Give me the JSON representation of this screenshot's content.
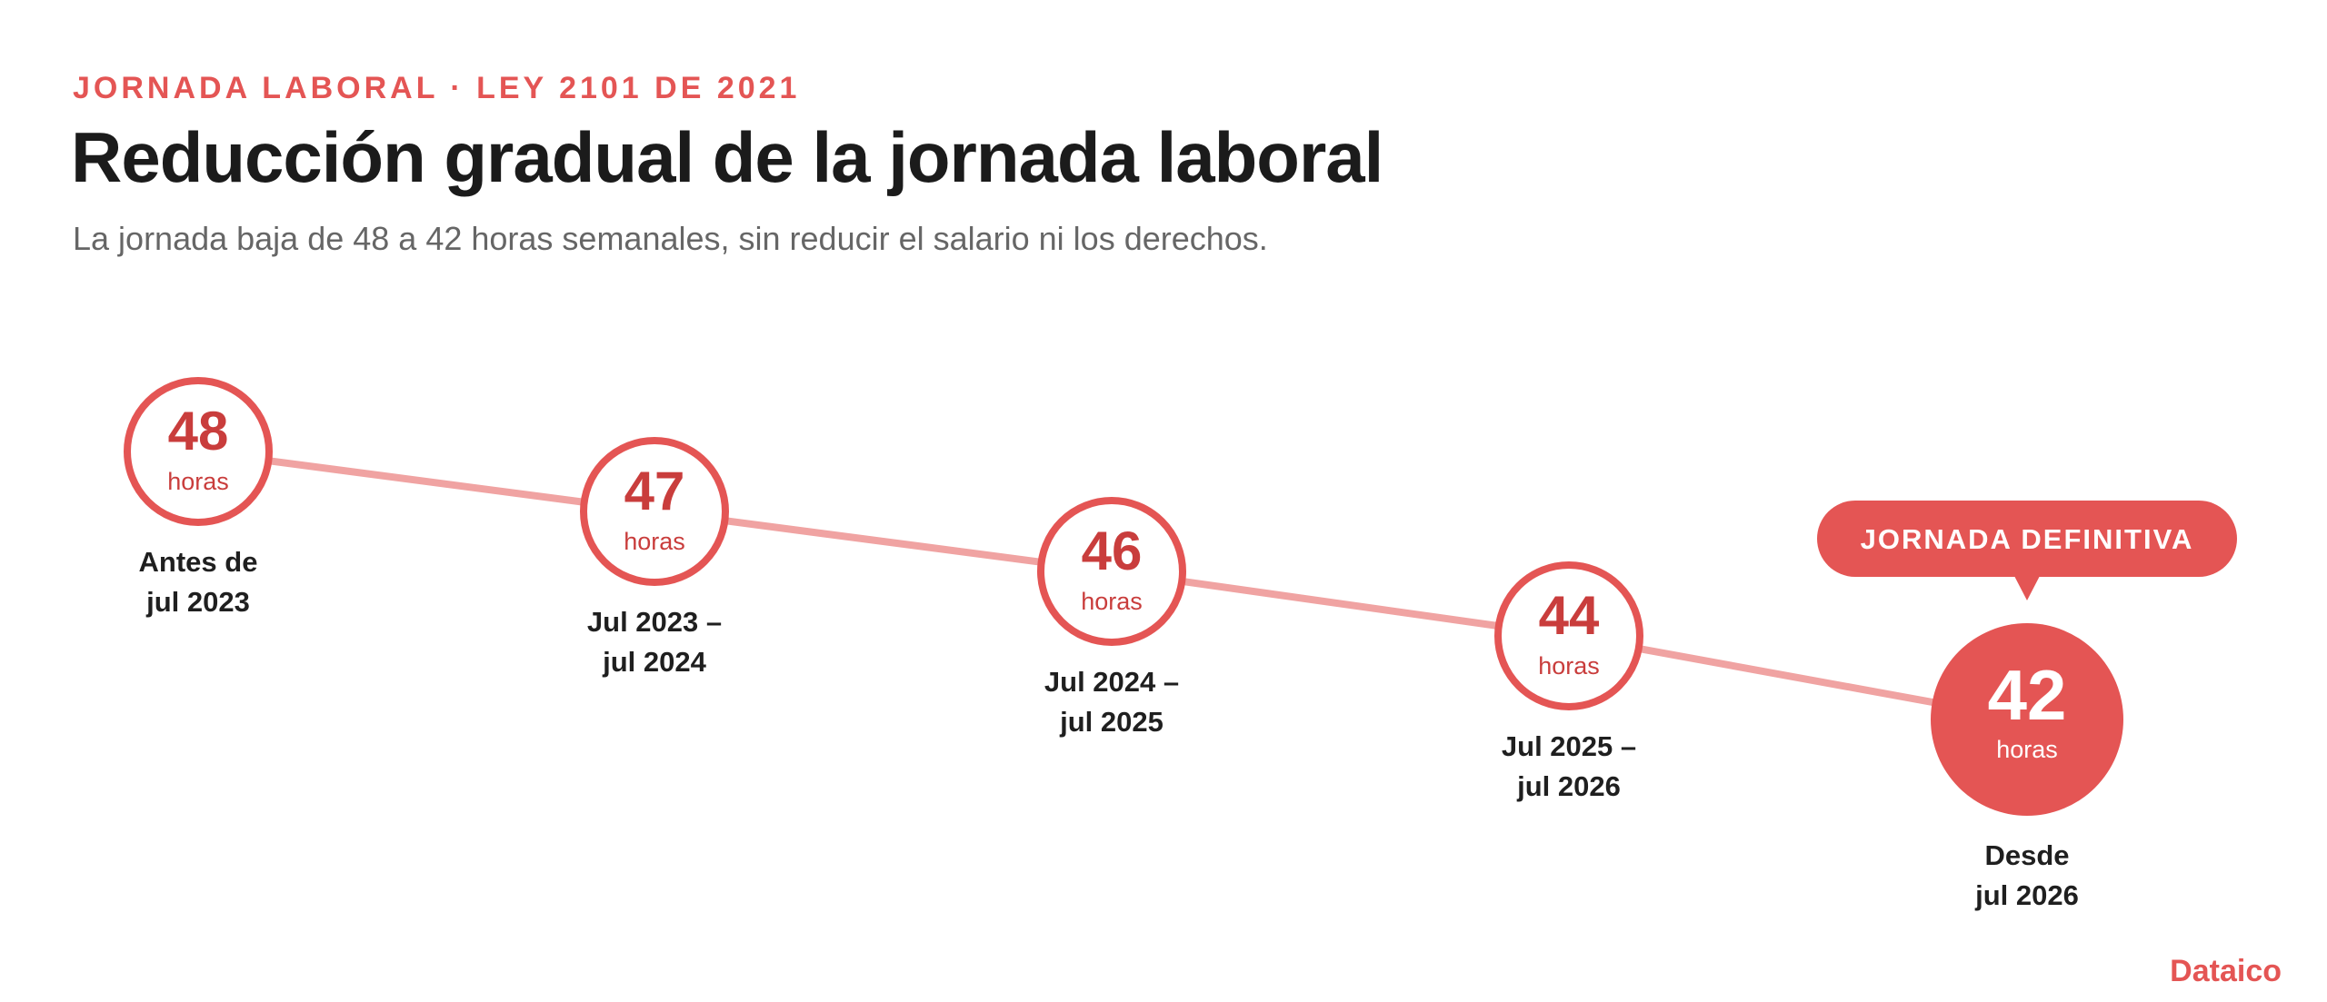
{
  "header": {
    "kicker": "JORNADA LABORAL · LEY 2101 DE 2021",
    "title": "Reducción gradual de la jornada laboral",
    "subtitle": "La jornada baja de 48 a 42 horas semanales, sin reducir el salario ni los derechos."
  },
  "timeline": {
    "unit_label": "horas",
    "steps": [
      {
        "hours": 48,
        "period": [
          "Antes de",
          "jul 2023"
        ],
        "final": false
      },
      {
        "hours": 47,
        "period": [
          "Jul 2023 –",
          "jul 2024"
        ],
        "final": false
      },
      {
        "hours": 46,
        "period": [
          "Jul 2024 –",
          "jul 2025"
        ],
        "final": false
      },
      {
        "hours": 44,
        "period": [
          "Jul 2025 –",
          "jul 2026"
        ],
        "final": false
      },
      {
        "hours": 42,
        "period": [
          "Desde",
          "jul 2026"
        ],
        "final": true
      }
    ],
    "callout": "JORNADA DEFINITIVA"
  },
  "colors": {
    "accent": "#e45554",
    "accent_dark": "#c93d3c",
    "line": "#f0a3a2",
    "label_text": "#1f1f1f"
  },
  "brand": "Dataico"
}
